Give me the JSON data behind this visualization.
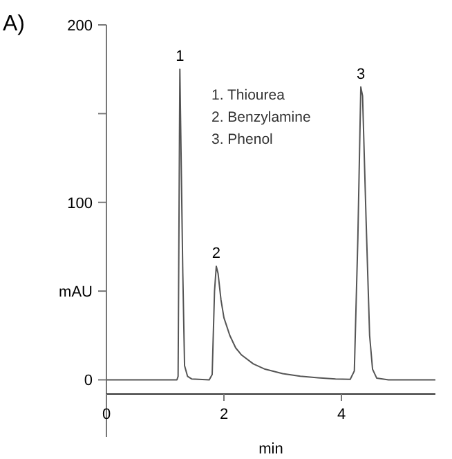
{
  "chart_data": {
    "type": "line",
    "title": "A)",
    "xlabel": "min",
    "ylabel": "mAU",
    "xlim": [
      0,
      5.6
    ],
    "ylim": [
      -8,
      200
    ],
    "xticks": [
      0,
      2,
      4
    ],
    "yticks": [
      0,
      {
        "value": 50,
        "label": null
      },
      100,
      {
        "value": 150,
        "label": null
      },
      200
    ],
    "grid": false,
    "marker": "none",
    "line_style": "solid",
    "series": [
      {
        "color": "#555555",
        "x": [
          0,
          1.2,
          1.22,
          1.25,
          1.3,
          1.33,
          1.38,
          1.45,
          1.75,
          1.8,
          1.84,
          1.87,
          1.9,
          1.95,
          2.0,
          2.1,
          2.2,
          2.3,
          2.5,
          2.7,
          3.0,
          3.3,
          3.6,
          3.9,
          4.15,
          4.22,
          4.28,
          4.33,
          4.36,
          4.42,
          4.48,
          4.53,
          4.6,
          4.8,
          5.6
        ],
        "values": [
          0,
          0,
          2,
          175,
          60,
          8,
          2,
          0.5,
          0,
          3,
          50,
          64,
          60,
          45,
          35,
          25,
          18,
          14,
          9,
          6,
          3.5,
          2,
          1.2,
          0.5,
          0.3,
          5,
          80,
          165,
          160,
          90,
          25,
          6,
          1,
          0,
          0
        ]
      }
    ],
    "annotations": [
      {
        "text": "1",
        "x": 1.25,
        "y": 175
      },
      {
        "text": "2",
        "x": 1.87,
        "y": 64
      },
      {
        "text": "3",
        "x": 4.33,
        "y": 165
      },
      "1. Thiourea",
      "2. Benzylamine",
      "3. Phenol"
    ]
  }
}
